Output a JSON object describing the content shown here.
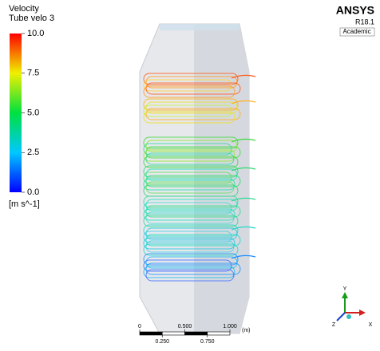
{
  "legend": {
    "title": "Velocity",
    "subtitle": "Tube velo 3",
    "unit": "[m s^-1]",
    "ticks": [
      {
        "value": 10,
        "label": "10.0"
      },
      {
        "value": 7.5,
        "label": "7.5"
      },
      {
        "value": 5,
        "label": "5.0"
      },
      {
        "value": 2.5,
        "label": "2.5"
      },
      {
        "value": 0,
        "label": "0.0"
      }
    ]
  },
  "logo": {
    "brand": "ANSYS",
    "version": "R18.1",
    "edition": "Academic"
  },
  "scale_bar": {
    "unit": "(m)",
    "top_ticks": [
      {
        "value": 0,
        "label": "0"
      },
      {
        "value": 0.5,
        "label": "0.500"
      },
      {
        "value": 1,
        "label": "1.000"
      }
    ],
    "bottom_ticks": [
      {
        "value": 0.25,
        "label": "0.250"
      },
      {
        "value": 0.75,
        "label": "0.750"
      }
    ]
  },
  "axes": {
    "y": "Y",
    "z": "Z",
    "x": "X"
  }
}
